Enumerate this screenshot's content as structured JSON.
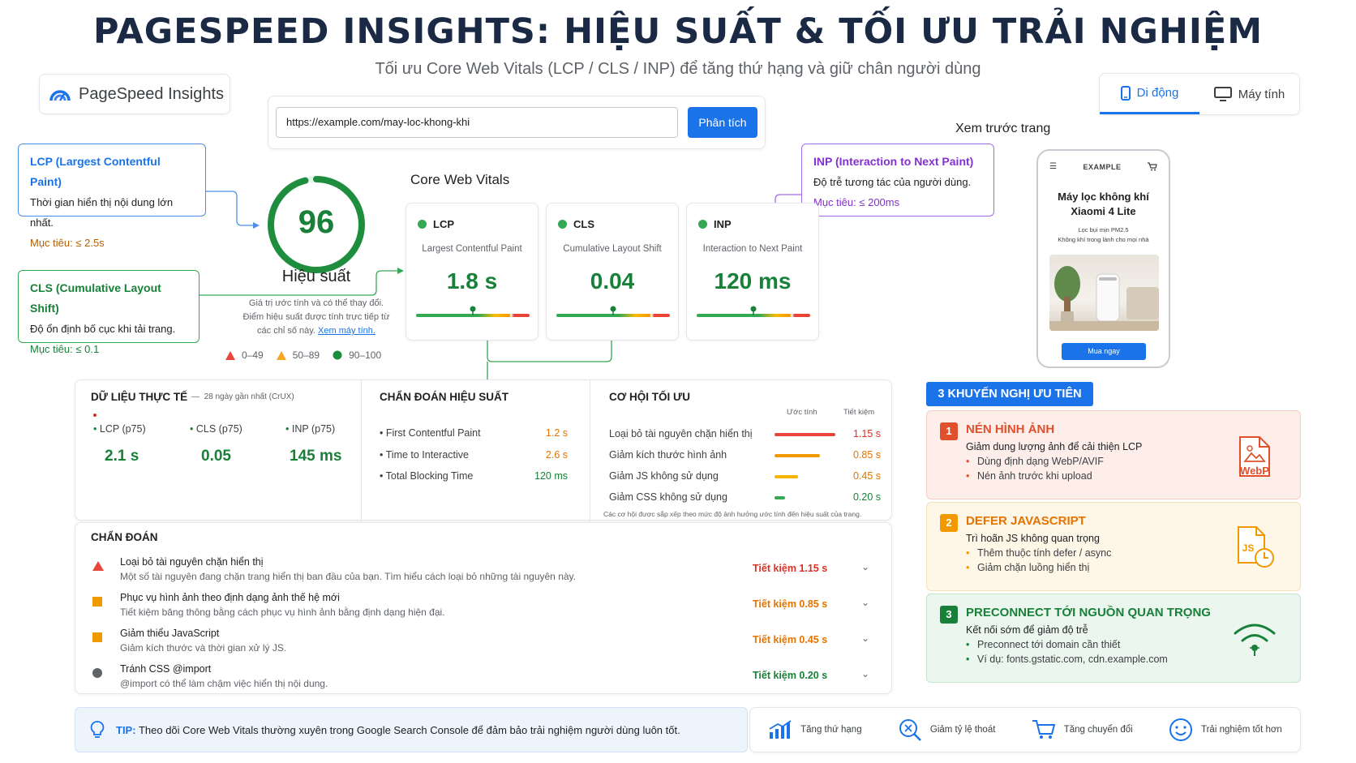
{
  "header": {
    "title": "PAGESPEED INSIGHTS: HIỆU SUẤT & TỐI ƯU TRẢI NGHIỆM",
    "subtitle": "Tối ưu Core Web Vitals (LCP / CLS / INP) để tăng thứ hạng và giữ chân người dùng"
  },
  "brand": {
    "name": "PageSpeed Insights",
    "icon": "pagespeed-logo-icon"
  },
  "search": {
    "url": "https://example.com/may-loc-khong-khi",
    "analyze_label": "Phân tích"
  },
  "device": {
    "mobile": "Di động",
    "desktop": "Máy tính",
    "active": "mobile"
  },
  "definitions": {
    "lcp": {
      "title": "LCP (Largest Contentful Paint)",
      "desc": "Thời gian hiển thị nội dung lớn nhất.",
      "target": "Mục tiêu: ≤ 2.5s"
    },
    "cls": {
      "title": "CLS (Cumulative Layout Shift)",
      "desc": "Độ ổn định bố cục khi tải trang.",
      "target": "Mục tiêu: ≤ 0.1"
    },
    "inp": {
      "title": "INP (Interaction to Next Paint)",
      "desc": "Độ trễ tương tác của người dùng.",
      "target": "Mục tiêu: ≤ 200ms"
    }
  },
  "performance": {
    "score": "96",
    "score_fraction": 0.96,
    "label": "Hiệu suất",
    "note": [
      "Giá trị ước tính và có thể thay đổi.",
      "Điểm hiệu suất được tính trực tiếp từ",
      "các chỉ số này."
    ],
    "link": "Xem máy tính.",
    "legend": [
      "0–49",
      "50–89",
      "90–100"
    ]
  },
  "cwv": {
    "title": "Core Web Vitals",
    "metrics": [
      {
        "short": "LCP",
        "full": "Largest Contentful Paint",
        "value": "1.8 s",
        "marker": 0.5
      },
      {
        "short": "CLS",
        "full": "Cumulative Layout Shift",
        "value": "0.04",
        "marker": 0.5
      },
      {
        "short": "INP",
        "full": "Interaction to Next Paint",
        "value": "120 ms",
        "marker": 0.5
      }
    ]
  },
  "preview": {
    "title": "Xem trước trang",
    "brand": "EXAMPLE",
    "product": [
      "Máy lọc không khí",
      "Xiaomi 4 Lite"
    ],
    "desc": [
      "Lọc bụi mịn PM2.5",
      "Không khí trong lành cho mọi nhà"
    ],
    "buy": "Mua ngay"
  },
  "field": {
    "title": "DỮ LIỆU THỰC TẾ",
    "period": "28 ngày gần nhất (CrUX)",
    "items": [
      {
        "label": "LCP (p75)",
        "value": "2.1 s"
      },
      {
        "label": "CLS (p75)",
        "value": "0.05"
      },
      {
        "label": "INP (p75)",
        "value": "145 ms"
      }
    ]
  },
  "lab": {
    "title": "CHẨN ĐOÁN HIỆU SUẤT",
    "items": [
      {
        "label": "First Contentful Paint",
        "value": "1.2 s"
      },
      {
        "label": "Time to Interactive",
        "value": "2.6 s"
      },
      {
        "label": "Total Blocking Time",
        "value": "120 ms"
      }
    ]
  },
  "opportunities": {
    "title": "CƠ HỘI TỐI ƯU",
    "col_estimate": "Ước tính",
    "col_savings": "Tiết kiệm",
    "items": [
      {
        "label": "Loại bỏ tài nguyên chặn hiển thị",
        "value": "1.15 s",
        "ratio": 1.0
      },
      {
        "label": "Giảm kích thước hình ảnh",
        "value": "0.85 s",
        "ratio": 0.74
      },
      {
        "label": "Giảm JS không sử dụng",
        "value": "0.45 s",
        "ratio": 0.39
      },
      {
        "label": "Giảm CSS không sử dụng",
        "value": "0.20 s",
        "ratio": 0.17
      }
    ],
    "note": "Các cơ hội được sắp xếp theo mức độ ảnh hưởng ước tính đến hiệu suất của trang."
  },
  "diagnostics": {
    "title": "CHẨN ĐOÁN",
    "items": [
      {
        "title": "Loại bỏ tài nguyên chặn hiển thị",
        "desc": "Một số tài nguyên đang chặn trang hiển thị ban đầu của bạn. Tìm hiểu cách loại bỏ những tài nguyên này.",
        "saving": "Tiết kiệm 1.15 s",
        "severity": "red"
      },
      {
        "title": "Phục vụ hình ảnh theo định dạng ảnh thế hệ mới",
        "desc": "Tiết kiệm băng thông bằng cách phục vụ hình ảnh bằng định dạng hiện đại.",
        "saving": "Tiết kiệm 0.85 s",
        "severity": "orange"
      },
      {
        "title": "Giảm thiểu JavaScript",
        "desc": "Giảm kích thước và thời gian xử lý JS.",
        "saving": "Tiết kiệm 0.45 s",
        "severity": "orange"
      },
      {
        "title": "Tránh CSS @import",
        "desc": "@import có thể làm chậm việc hiển thị nội dung.",
        "saving": "Tiết kiệm 0.20 s",
        "severity": "gray"
      }
    ]
  },
  "recommendations": {
    "title": "3 KHUYẾN NGHỊ ƯU TIÊN",
    "items": [
      {
        "num": "1",
        "title": "NÉN HÌNH ẢNH",
        "desc": "Giảm dung lượng ảnh để cải thiện LCP",
        "bullets": [
          "Dùng định dạng WebP/AVIF",
          "Nén ảnh trước khi upload"
        ],
        "icon": "webp-file-icon",
        "icon_text": "WebP"
      },
      {
        "num": "2",
        "title": "DEFER JAVASCRIPT",
        "desc": "Trì hoãn JS không quan trọng",
        "bullets": [
          "Thêm thuộc tính defer / async",
          "Giảm chặn luồng hiển thị"
        ],
        "icon": "js-clock-icon",
        "icon_text": "JS"
      },
      {
        "num": "3",
        "title": "PRECONNECT TỚI NGUỒN QUAN TRỌNG",
        "desc": "Kết nối sớm để giảm độ trễ",
        "bullets": [
          "Preconnect tới domain cần thiết",
          "Ví dụ: fonts.gstatic.com, cdn.example.com"
        ],
        "icon": "wifi-connect-icon"
      }
    ]
  },
  "tip": {
    "label": "TIP:",
    "text": "Theo dõi Core Web Vitals thường xuyên trong Google Search Console để đảm bảo trải nghiệm người dùng luôn tốt."
  },
  "benefits": [
    {
      "label": "Tăng thứ hạng",
      "icon": "ranking-chart-icon"
    },
    {
      "label": "Giảm tỷ lệ thoát",
      "icon": "bounce-search-icon"
    },
    {
      "label": "Tăng chuyển đổi",
      "icon": "cart-icon"
    },
    {
      "label": "Trải nghiệm tốt hơn",
      "icon": "smile-icon"
    }
  ],
  "colors": {
    "good": "#188038",
    "average": "#e37400",
    "poor": "#d93025",
    "accent": "#1a73e8"
  }
}
